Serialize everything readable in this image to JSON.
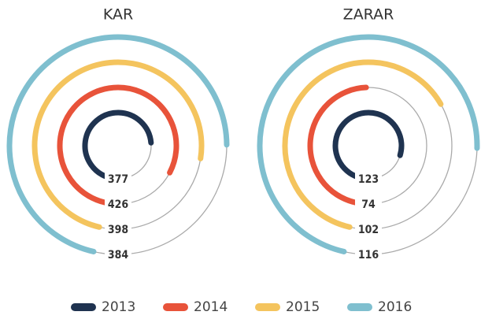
{
  "chart_data": [
    {
      "type": "radial_bar",
      "title": "KAR",
      "categories": [
        "2013",
        "2014",
        "2015",
        "2016"
      ],
      "values": [
        377,
        426,
        398,
        384
      ],
      "colors": [
        "#1f3350",
        "#e8533a",
        "#f4c45e",
        "#7fbfcf"
      ],
      "rlim": [
        0,
        500
      ]
    },
    {
      "type": "radial_bar",
      "title": "ZARAR",
      "categories": [
        "2013",
        "2014",
        "2015",
        "2016"
      ],
      "values": [
        123,
        74,
        102,
        116
      ],
      "colors": [
        "#1f3350",
        "#e8533a",
        "#f4c45e",
        "#7fbfcf"
      ],
      "rlim": [
        0,
        150
      ]
    }
  ]
}
